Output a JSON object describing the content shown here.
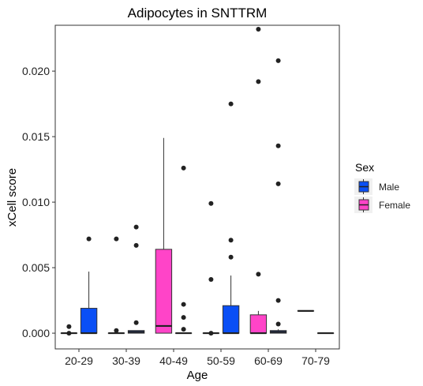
{
  "chart_data": {
    "type": "box",
    "title": "Adipocytes in SNTTRM",
    "xlabel": "Age",
    "ylabel": "xCell score",
    "categories": [
      "20-29",
      "30-39",
      "40-49",
      "50-59",
      "60-69",
      "70-79"
    ],
    "ylim": [
      -0.0012,
      0.0235
    ],
    "yticks": [
      0.0,
      0.005,
      0.01,
      0.015,
      0.02
    ],
    "ytick_labels": [
      "0.000",
      "0.005",
      "0.010",
      "0.015",
      "0.020"
    ],
    "grid": false,
    "legend": {
      "title": "Sex",
      "position": "right",
      "entries": [
        {
          "name": "Male",
          "color": "#0a4ff5"
        },
        {
          "name": "Female",
          "color": "#ff44c8"
        }
      ]
    },
    "series": [
      {
        "name": "Female",
        "color": "#ff44c8",
        "boxes": [
          {
            "category": "20-29",
            "q1": 0.0,
            "median": 0.0,
            "q3": 0.0,
            "whisker_low": 0.0,
            "whisker_high": 0.0,
            "outliers": [
              0.0005,
              0.0
            ]
          },
          {
            "category": "30-39",
            "q1": 0.0,
            "median": 0.0,
            "q3": 0.0,
            "whisker_low": 0.0,
            "whisker_high": 0.0,
            "outliers": [
              0.0072,
              0.0002
            ]
          },
          {
            "category": "40-49",
            "q1": 0.0,
            "median": 0.00055,
            "q3": 0.0064,
            "whisker_low": 0.0,
            "whisker_high": 0.0149,
            "outliers": []
          },
          {
            "category": "50-59",
            "q1": 0.0,
            "median": 0.0,
            "q3": 0.0,
            "whisker_low": 0.0,
            "whisker_high": 0.0,
            "outliers": [
              0.0099,
              0.0041,
              0.0
            ]
          },
          {
            "category": "60-69",
            "q1": 0.0,
            "median": 0.0,
            "q3": 0.0014,
            "whisker_low": 0.0,
            "whisker_high": 0.0017,
            "outliers": [
              0.0232,
              0.0192,
              0.0045
            ]
          },
          {
            "category": "70-79",
            "q1": 0.0017,
            "median": 0.0017,
            "q3": 0.0017,
            "whisker_low": 0.0017,
            "whisker_high": 0.0017,
            "outliers": []
          }
        ]
      },
      {
        "name": "Male",
        "color": "#0a4ff5",
        "boxes": [
          {
            "category": "20-29",
            "q1": 0.0,
            "median": 0.0,
            "q3": 0.0019,
            "whisker_low": 0.0,
            "whisker_high": 0.0047,
            "outliers": [
              0.0072
            ]
          },
          {
            "category": "30-39",
            "q1": 0.0,
            "median": 0.0001,
            "q3": 0.0002,
            "whisker_low": 0.0,
            "whisker_high": 0.0002,
            "outliers": [
              0.0081,
              0.0067,
              0.0008
            ]
          },
          {
            "category": "40-49",
            "q1": 0.0,
            "median": 0.0,
            "q3": 0.0,
            "whisker_low": 0.0,
            "whisker_high": 0.0,
            "outliers": [
              0.0126,
              0.0022,
              0.0012,
              0.0003
            ]
          },
          {
            "category": "50-59",
            "q1": 0.0,
            "median": 0.0,
            "q3": 0.0021,
            "whisker_low": 0.0,
            "whisker_high": 0.0044,
            "outliers": [
              0.0175,
              0.0071,
              0.0058
            ]
          },
          {
            "category": "60-69",
            "q1": 0.0,
            "median": 0.0001,
            "q3": 0.0002,
            "whisker_low": 0.0,
            "whisker_high": 0.0003,
            "outliers": [
              0.0208,
              0.0143,
              0.0114,
              0.0025,
              0.0007
            ]
          },
          {
            "category": "70-79",
            "q1": 0.0,
            "median": 0.0,
            "q3": 0.0,
            "whisker_low": 0.0,
            "whisker_high": 0.0,
            "outliers": []
          }
        ]
      }
    ]
  }
}
